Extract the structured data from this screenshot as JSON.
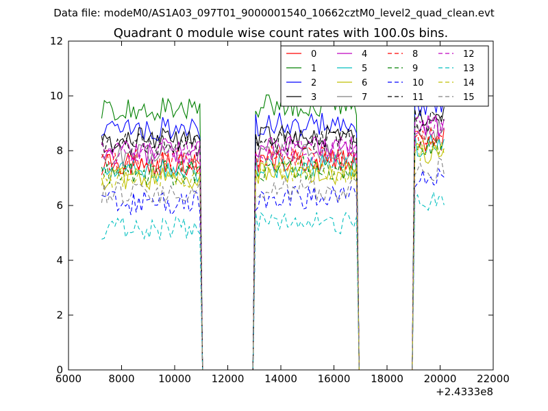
{
  "chart_data": {
    "type": "line",
    "suptitle": "Data file: modeM0/AS1A03_097T01_9000001540_10662cztM0_level2_quad_clean.evt",
    "title": "Quadrant 0 module wise count rates with 100.0s bins.",
    "xlabel": "",
    "ylabel": "",
    "x_offset_label": "+2.4333e8",
    "xlim": [
      6000,
      22000
    ],
    "ylim": [
      0,
      12
    ],
    "xticks": [
      "6000",
      "8000",
      "10000",
      "12000",
      "14000",
      "16000",
      "18000",
      "20000",
      "22000"
    ],
    "yticks": [
      "0",
      "2",
      "4",
      "6",
      "8",
      "10",
      "12"
    ],
    "grid": false,
    "legend": {
      "placement": "top-right",
      "ncol": 4
    },
    "x_segments": [
      [
        7250,
        10950
      ],
      [
        13050,
        16850
      ],
      [
        19050,
        20150
      ]
    ],
    "series": [
      {
        "name": "0",
        "color": "#ff0000",
        "style": "solid",
        "level": 7.5
      },
      {
        "name": "1",
        "color": "#008000",
        "style": "solid",
        "level": 9.5
      },
      {
        "name": "2",
        "color": "#0000ff",
        "style": "solid",
        "level": 8.8
      },
      {
        "name": "3",
        "color": "#000000",
        "style": "solid",
        "level": 8.4
      },
      {
        "name": "4",
        "color": "#bf00bf",
        "style": "solid",
        "level": 8.0
      },
      {
        "name": "5",
        "color": "#00bfbf",
        "style": "solid",
        "level": 7.3
      },
      {
        "name": "6",
        "color": "#bfbf00",
        "style": "solid",
        "level": 7.0
      },
      {
        "name": "7",
        "color": "#808080",
        "style": "solid",
        "level": 7.8
      },
      {
        "name": "8",
        "color": "#ff0000",
        "style": "dashed",
        "level": 7.6
      },
      {
        "name": "9",
        "color": "#008000",
        "style": "dashed",
        "level": 7.2
      },
      {
        "name": "10",
        "color": "#0000ff",
        "style": "dashed",
        "level": 6.1
      },
      {
        "name": "11",
        "color": "#000000",
        "style": "dashed",
        "level": 8.2
      },
      {
        "name": "12",
        "color": "#bf00bf",
        "style": "dashed",
        "level": 7.9
      },
      {
        "name": "13",
        "color": "#00bfbf",
        "style": "dashed",
        "level": 5.2
      },
      {
        "name": "14",
        "color": "#bfbf00",
        "style": "dashed",
        "level": 7.1
      },
      {
        "name": "15",
        "color": "#808080",
        "style": "dashed",
        "level": 6.4
      }
    ]
  }
}
